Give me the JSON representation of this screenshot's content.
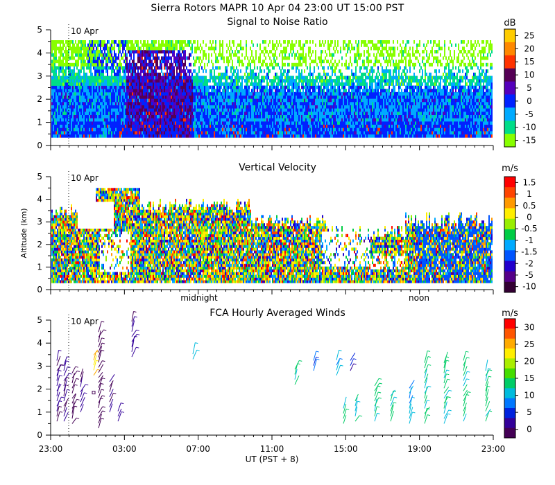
{
  "header": {
    "title": "Sierra Rotors   MAPR 10 Apr 04   23:00 UT   15:00   PST"
  },
  "chart_data": [
    {
      "type": "heatmap",
      "title": "Signal to Noise Ratio",
      "ylabel": "",
      "ylim": [
        0,
        5
      ],
      "yticks": [
        "0",
        "1",
        "2",
        "3",
        "4",
        "5"
      ],
      "date_marker": "10 Apr",
      "colorbar": {
        "unit": "dB",
        "labels": [
          "25",
          "20",
          "15",
          "10",
          "5",
          "0",
          "-5",
          "-10",
          "-15"
        ],
        "colors": [
          "#ffcc00",
          "#ff8800",
          "#ff3300",
          "#550055",
          "#5500bb",
          "#0022ff",
          "#00aaff",
          "#00dd88",
          "#88ff00"
        ]
      }
    },
    {
      "type": "heatmap",
      "title": "Vertical Velocity",
      "ylabel": "Altitude (km)",
      "ylim": [
        0,
        5
      ],
      "yticks": [
        "0",
        "1",
        "2",
        "3",
        "4",
        "5"
      ],
      "date_marker": "10 Apr",
      "time_labels": [
        "midnight",
        "noon"
      ],
      "colorbar": {
        "unit": "m/s",
        "labels": [
          "1.5",
          "1",
          "0.5",
          "0",
          "-0.5",
          "-1",
          "-1.5",
          "-2",
          "-5",
          "-10"
        ],
        "colors": [
          "#ff0000",
          "#ff4400",
          "#ff9900",
          "#ffee00",
          "#99ee00",
          "#00cc44",
          "#00aaff",
          "#0055ff",
          "#2200cc",
          "#550088",
          "#330033"
        ]
      }
    },
    {
      "type": "scatter",
      "title": "FCA Hourly Averaged Winds",
      "ylabel": "",
      "ylim": [
        0,
        5
      ],
      "yticks": [
        "0",
        "1",
        "2",
        "3",
        "4",
        "5"
      ],
      "date_marker": "10 Apr",
      "xlabel": "UT  (PST + 8)",
      "xticks": [
        "23:00",
        "03:00",
        "07:00",
        "11:00",
        "15:00",
        "19:00",
        "23:00"
      ],
      "colorbar": {
        "unit": "m/s",
        "labels": [
          "30",
          "25",
          "20",
          "15",
          "10",
          "5",
          "0"
        ],
        "colors": [
          "#ff0000",
          "#ff5500",
          "#ffaa00",
          "#ffee00",
          "#aaee00",
          "#44dd00",
          "#00cc66",
          "#00bbdd",
          "#0077ff",
          "#0022dd",
          "#330099",
          "#440055"
        ]
      },
      "series_note": "wind barbs by hour and altitude, colored by speed"
    }
  ]
}
